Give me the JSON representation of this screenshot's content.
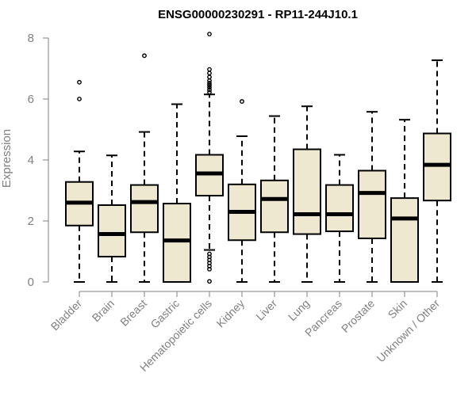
{
  "chart_data": {
    "type": "boxplot",
    "title": "ENSG00000230291 - RP11-244J10.1",
    "xlabel": "",
    "ylabel": "Expression",
    "ylim": [
      0,
      8
    ],
    "yticks": [
      0,
      2,
      4,
      6,
      8
    ],
    "box_fill": "#efe8d0",
    "line_color": "#000000",
    "axis_color": "#808080",
    "categories": [
      "Bladder",
      "Brain",
      "Breast",
      "Gastric",
      "Hematopoietic cells",
      "Kidney",
      "Liver",
      "Lung",
      "Pancreas",
      "Prostate",
      "Skin",
      "Unknown / Other"
    ],
    "boxes": [
      {
        "name": "Bladder",
        "whisker_low": 0,
        "q1": 1.85,
        "median": 2.6,
        "q3": 3.28,
        "whisker_high": 4.28,
        "outliers": [
          6.55,
          6.0
        ]
      },
      {
        "name": "Brain",
        "whisker_low": 0,
        "q1": 0.83,
        "median": 1.57,
        "q3": 2.52,
        "whisker_high": 4.15,
        "outliers": []
      },
      {
        "name": "Breast",
        "whisker_low": 0,
        "q1": 1.63,
        "median": 2.62,
        "q3": 3.18,
        "whisker_high": 4.92,
        "outliers": [
          7.42
        ]
      },
      {
        "name": "Gastric",
        "whisker_low": 0,
        "q1": 0,
        "median": 1.36,
        "q3": 2.57,
        "whisker_high": 5.83,
        "outliers": []
      },
      {
        "name": "Hematopoietic cells",
        "whisker_low": 1.05,
        "q1": 2.83,
        "median": 3.56,
        "q3": 4.17,
        "whisker_high": 6.15,
        "outliers": [
          8.13,
          6.97,
          6.85,
          6.72,
          6.6,
          6.52,
          6.45,
          6.38,
          6.3,
          6.22,
          0.92,
          0.82,
          0.72,
          0.62,
          0.52,
          0.42,
          0.02
        ]
      },
      {
        "name": "Kidney",
        "whisker_low": 0,
        "q1": 1.37,
        "median": 2.3,
        "q3": 3.2,
        "whisker_high": 4.78,
        "outliers": [
          5.92
        ]
      },
      {
        "name": "Liver",
        "whisker_low": 0,
        "q1": 1.63,
        "median": 2.72,
        "q3": 3.33,
        "whisker_high": 5.44,
        "outliers": []
      },
      {
        "name": "Lung",
        "whisker_low": 0,
        "q1": 1.57,
        "median": 2.22,
        "q3": 4.35,
        "whisker_high": 5.76,
        "outliers": []
      },
      {
        "name": "Pancreas",
        "whisker_low": 0,
        "q1": 1.66,
        "median": 2.22,
        "q3": 3.18,
        "whisker_high": 4.17,
        "outliers": []
      },
      {
        "name": "Prostate",
        "whisker_low": 0,
        "q1": 1.43,
        "median": 2.92,
        "q3": 3.65,
        "whisker_high": 5.58,
        "outliers": []
      },
      {
        "name": "Skin",
        "whisker_low": 0,
        "q1": 0,
        "median": 2.08,
        "q3": 2.75,
        "whisker_high": 5.32,
        "outliers": []
      },
      {
        "name": "Unknown / Other",
        "whisker_low": 0,
        "q1": 2.67,
        "median": 3.84,
        "q3": 4.87,
        "whisker_high": 7.27,
        "outliers": []
      }
    ]
  }
}
